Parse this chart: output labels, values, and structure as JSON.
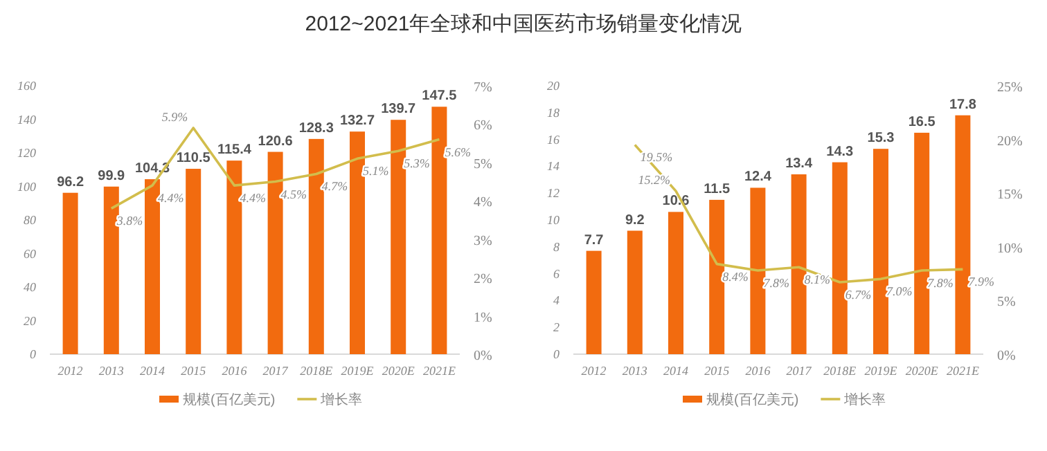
{
  "chart_data": [
    {
      "type": "bar",
      "title": "2012~2021年全球和中国医药市场销量变化情况",
      "categories": [
        "2012",
        "2013",
        "2014",
        "2015",
        "2016",
        "2017",
        "2018E",
        "2019E",
        "2020E",
        "2021E"
      ],
      "series": [
        {
          "name": "规模(百亿美元)",
          "color": "#f26b0f",
          "values": [
            96.2,
            99.9,
            104.3,
            110.5,
            115.4,
            120.6,
            128.3,
            132.7,
            139.7,
            147.5
          ],
          "value_labels": [
            "96.2",
            "99.9",
            "104.3",
            "110.5",
            "115.4",
            "120.6",
            "128.3",
            "132.7",
            "139.7",
            "147.5"
          ]
        },
        {
          "name": "增长率",
          "type": "line",
          "axis": "y2",
          "color": "#d2bd4c",
          "values": [
            null,
            3.8,
            4.4,
            5.9,
            4.4,
            4.5,
            4.7,
            5.1,
            5.3,
            5.6
          ],
          "value_labels": [
            null,
            "3.8%",
            "4.4%",
            "5.9%",
            "4.4%",
            "4.5%",
            "4.7%",
            "5.1%",
            "5.3%",
            "5.6%"
          ]
        }
      ],
      "ylim": [
        0,
        160
      ],
      "yticks": [
        0,
        20,
        40,
        60,
        80,
        100,
        120,
        140,
        160
      ],
      "y2lim": [
        0,
        7
      ],
      "y2ticks": [
        {
          "value": 0,
          "label": "0%"
        },
        {
          "value": 1,
          "label": "1%"
        },
        {
          "value": 2,
          "label": "2%"
        },
        {
          "value": 3,
          "label": "3%"
        },
        {
          "value": 4,
          "label": "4%"
        },
        {
          "value": 5,
          "label": "5%"
        },
        {
          "value": 6,
          "label": "6%"
        },
        {
          "value": 7,
          "label": "7%"
        }
      ],
      "legend": "bottom",
      "grid": false
    },
    {
      "type": "bar",
      "categories": [
        "2012",
        "2013",
        "2014",
        "2015",
        "2016",
        "2017",
        "2018E",
        "2019E",
        "2020E",
        "2021E"
      ],
      "series": [
        {
          "name": "规模(百亿美元)",
          "color": "#f26b0f",
          "values": [
            7.7,
            9.2,
            10.6,
            11.5,
            12.4,
            13.4,
            14.3,
            15.3,
            16.5,
            17.8
          ],
          "value_labels": [
            "7.7",
            "9.2",
            "10.6",
            "11.5",
            "12.4",
            "13.4",
            "14.3",
            "15.3",
            "16.5",
            "17.8"
          ]
        },
        {
          "name": "增长率",
          "type": "line",
          "axis": "y2",
          "color": "#d2bd4c",
          "values": [
            null,
            19.5,
            15.2,
            8.4,
            7.8,
            8.1,
            6.7,
            7.0,
            7.8,
            7.9
          ],
          "value_labels": [
            null,
            "19.5%",
            "15.2%",
            "8.4%",
            "7.8%",
            "8.1%",
            "6.7%",
            "7.0%",
            "7.8%",
            "7.9%"
          ]
        }
      ],
      "ylim": [
        0,
        20
      ],
      "yticks": [
        0,
        2,
        4,
        6,
        8,
        10,
        12,
        14,
        16,
        18,
        20
      ],
      "y2lim": [
        0,
        25
      ],
      "y2ticks": [
        {
          "value": 0,
          "label": "0%"
        },
        {
          "value": 5,
          "label": "5%"
        },
        {
          "value": 10,
          "label": "10%"
        },
        {
          "value": 15,
          "label": "15%"
        },
        {
          "value": 20,
          "label": "20%"
        },
        {
          "value": 25,
          "label": "25%"
        }
      ],
      "legend": "bottom",
      "grid": false
    }
  ]
}
